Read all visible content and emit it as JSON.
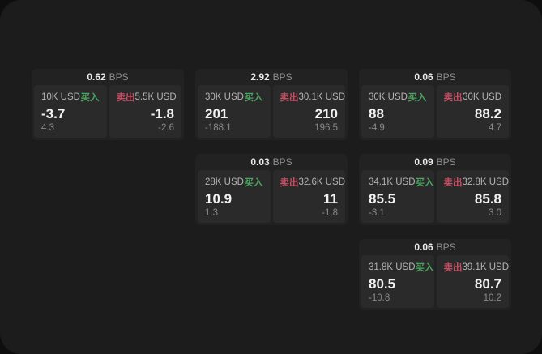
{
  "labels": {
    "bps_unit": "BPS",
    "buy": "买入",
    "sell": "卖出"
  },
  "colors": {
    "surface": "#1c1c1c",
    "card": "#222222",
    "panel": "#2a2a2a",
    "buy": "#4aa55f",
    "sell": "#c74e63"
  },
  "cards": [
    {
      "bps": "0.62",
      "row": 1,
      "col": 1,
      "buy": {
        "amount": "10K USD",
        "value": "-3.7",
        "delta": "4.3"
      },
      "sell": {
        "amount": "5.5K USD",
        "value": "-1.8",
        "delta": "-2.6"
      }
    },
    {
      "bps": "2.92",
      "row": 1,
      "col": 2,
      "buy": {
        "amount": "30K USD",
        "value": "201",
        "delta": "-188.1"
      },
      "sell": {
        "amount": "30.1K USD",
        "value": "210",
        "delta": "196.5"
      }
    },
    {
      "bps": "0.06",
      "row": 1,
      "col": 3,
      "buy": {
        "amount": "30K USD",
        "value": "88",
        "delta": "-4.9"
      },
      "sell": {
        "amount": "30K USD",
        "value": "88.2",
        "delta": "4.7"
      }
    },
    {
      "bps": "0.03",
      "row": 2,
      "col": 2,
      "buy": {
        "amount": "28K USD",
        "value": "10.9",
        "delta": "1.3"
      },
      "sell": {
        "amount": "32.6K USD",
        "value": "11",
        "delta": "-1.8"
      }
    },
    {
      "bps": "0.09",
      "row": 2,
      "col": 3,
      "buy": {
        "amount": "34.1K USD",
        "value": "85.5",
        "delta": "-3.1"
      },
      "sell": {
        "amount": "32.8K USD",
        "value": "85.8",
        "delta": "3.0"
      }
    },
    {
      "bps": "0.06",
      "row": 3,
      "col": 3,
      "buy": {
        "amount": "31.8K USD",
        "value": "80.5",
        "delta": "-10.8"
      },
      "sell": {
        "amount": "39.1K USD",
        "value": "80.7",
        "delta": "10.2"
      }
    }
  ]
}
